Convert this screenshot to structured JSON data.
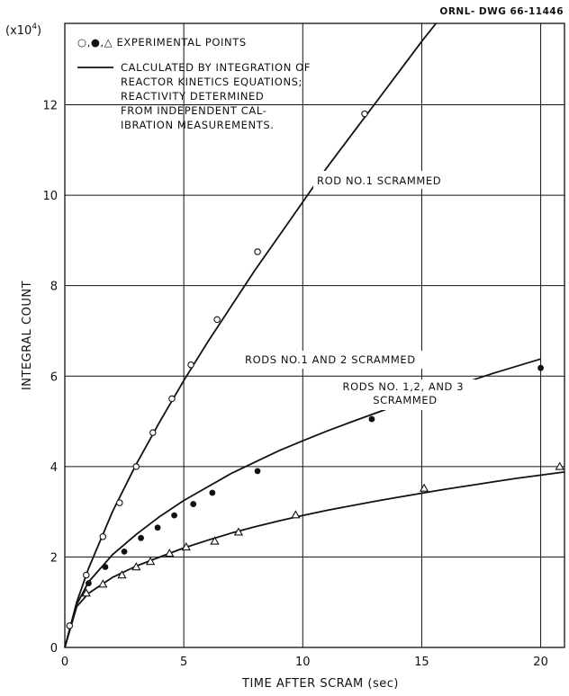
{
  "drawing_number": "ORNL- DWG 66-11446",
  "chart_data": {
    "type": "scatter",
    "xlabel": "TIME AFTER SCRAM (sec)",
    "ylabel": "INTEGRAL COUNT",
    "y_multiplier": "(x10",
    "y_multiplier_exp": "4",
    "y_multiplier_close": ")",
    "xlim": [
      0,
      21
    ],
    "ylim": [
      0,
      13.8
    ],
    "grid": "horizontal",
    "x_ticks": [
      0,
      5,
      10,
      15,
      20
    ],
    "x_tick_labels": [
      "0",
      "5",
      "10",
      "15",
      "20"
    ],
    "y_ticks": [
      0,
      2,
      4,
      6,
      8,
      10,
      12
    ],
    "y_tick_labels": [
      "0",
      "2",
      "4",
      "6",
      "8",
      "10",
      "12"
    ],
    "legend": {
      "points_label": "○,●,△ EXPERIMENTAL POINTS",
      "line_label_lines": [
        "CALCULATED BY INTEGRATION OF",
        "REACTOR KINETICS EQUATIONS;",
        "REACTIVITY DETERMINED",
        "FROM INDEPENDENT CAL-",
        "IBRATION MEASUREMENTS."
      ]
    },
    "series": [
      {
        "name": "ROD NO.1 SCRAMMED",
        "marker": "open-circle",
        "label_lines": [
          "ROD NO.1 SCRAMMED"
        ],
        "points": [
          [
            0.2,
            0.48
          ],
          [
            0.9,
            1.6
          ],
          [
            1.6,
            2.45
          ],
          [
            2.3,
            3.2
          ],
          [
            3.0,
            4.0
          ],
          [
            3.7,
            4.75
          ],
          [
            4.5,
            5.5
          ],
          [
            5.3,
            6.25
          ],
          [
            6.4,
            7.25
          ],
          [
            8.1,
            8.75
          ],
          [
            12.6,
            11.8
          ]
        ],
        "curve": [
          [
            0,
            0
          ],
          [
            0.5,
            1.0
          ],
          [
            1.0,
            1.75
          ],
          [
            2.0,
            3.0
          ],
          [
            3.0,
            4.05
          ],
          [
            4.0,
            5.0
          ],
          [
            5.0,
            5.9
          ],
          [
            6.0,
            6.75
          ],
          [
            7.0,
            7.55
          ],
          [
            8.0,
            8.35
          ],
          [
            9.0,
            9.1
          ],
          [
            10.0,
            9.85
          ],
          [
            11.0,
            10.6
          ],
          [
            12.0,
            11.3
          ],
          [
            13.0,
            12.0
          ],
          [
            14.0,
            12.7
          ],
          [
            15.0,
            13.4
          ],
          [
            15.6,
            13.8
          ]
        ]
      },
      {
        "name": "RODS NO.1 AND 2 SCRAMMED",
        "marker": "filled-circle",
        "label_lines": [
          "RODS NO.1 AND 2 SCRAMMED"
        ],
        "points": [
          [
            1.0,
            1.42
          ],
          [
            1.7,
            1.78
          ],
          [
            2.5,
            2.12
          ],
          [
            3.2,
            2.42
          ],
          [
            3.9,
            2.65
          ],
          [
            4.6,
            2.92
          ],
          [
            5.4,
            3.17
          ],
          [
            6.2,
            3.42
          ],
          [
            8.1,
            3.9
          ],
          [
            12.9,
            5.05
          ],
          [
            20.0,
            6.18
          ]
        ],
        "curve": [
          [
            0,
            0
          ],
          [
            0.5,
            0.95
          ],
          [
            1.0,
            1.45
          ],
          [
            2.0,
            2.05
          ],
          [
            3.0,
            2.5
          ],
          [
            4.0,
            2.9
          ],
          [
            5.0,
            3.25
          ],
          [
            6.0,
            3.55
          ],
          [
            7.0,
            3.85
          ],
          [
            8.0,
            4.1
          ],
          [
            9.0,
            4.35
          ],
          [
            10.0,
            4.57
          ],
          [
            11.0,
            4.78
          ],
          [
            12.0,
            4.98
          ],
          [
            13.0,
            5.17
          ],
          [
            14.0,
            5.36
          ],
          [
            15.0,
            5.54
          ],
          [
            16.0,
            5.72
          ],
          [
            17.0,
            5.89
          ],
          [
            18.0,
            6.06
          ],
          [
            19.0,
            6.22
          ],
          [
            20.0,
            6.38
          ]
        ]
      },
      {
        "name": "RODS NO.1,2, AND 3 SCRAMMED",
        "marker": "open-triangle",
        "label_lines": [
          "RODS NO. 1,2, AND 3",
          "SCRAMMED"
        ],
        "points": [
          [
            0.9,
            1.2
          ],
          [
            1.6,
            1.4
          ],
          [
            2.4,
            1.6
          ],
          [
            3.0,
            1.78
          ],
          [
            3.6,
            1.9
          ],
          [
            4.4,
            2.08
          ],
          [
            5.1,
            2.22
          ],
          [
            6.3,
            2.35
          ],
          [
            7.3,
            2.55
          ],
          [
            9.7,
            2.93
          ],
          [
            15.1,
            3.52
          ],
          [
            20.8,
            4.0
          ]
        ],
        "curve": [
          [
            0,
            0
          ],
          [
            0.5,
            0.9
          ],
          [
            1.0,
            1.2
          ],
          [
            2.0,
            1.55
          ],
          [
            3.0,
            1.8
          ],
          [
            4.0,
            2.0
          ],
          [
            5.0,
            2.2
          ],
          [
            6.0,
            2.37
          ],
          [
            7.0,
            2.53
          ],
          [
            8.0,
            2.67
          ],
          [
            9.0,
            2.8
          ],
          [
            10.0,
            2.92
          ],
          [
            11.0,
            3.03
          ],
          [
            12.0,
            3.13
          ],
          [
            13.0,
            3.23
          ],
          [
            14.0,
            3.32
          ],
          [
            15.0,
            3.41
          ],
          [
            16.0,
            3.5
          ],
          [
            17.0,
            3.58
          ],
          [
            18.0,
            3.66
          ],
          [
            19.0,
            3.74
          ],
          [
            20.0,
            3.81
          ],
          [
            21.0,
            3.88
          ]
        ]
      }
    ]
  }
}
